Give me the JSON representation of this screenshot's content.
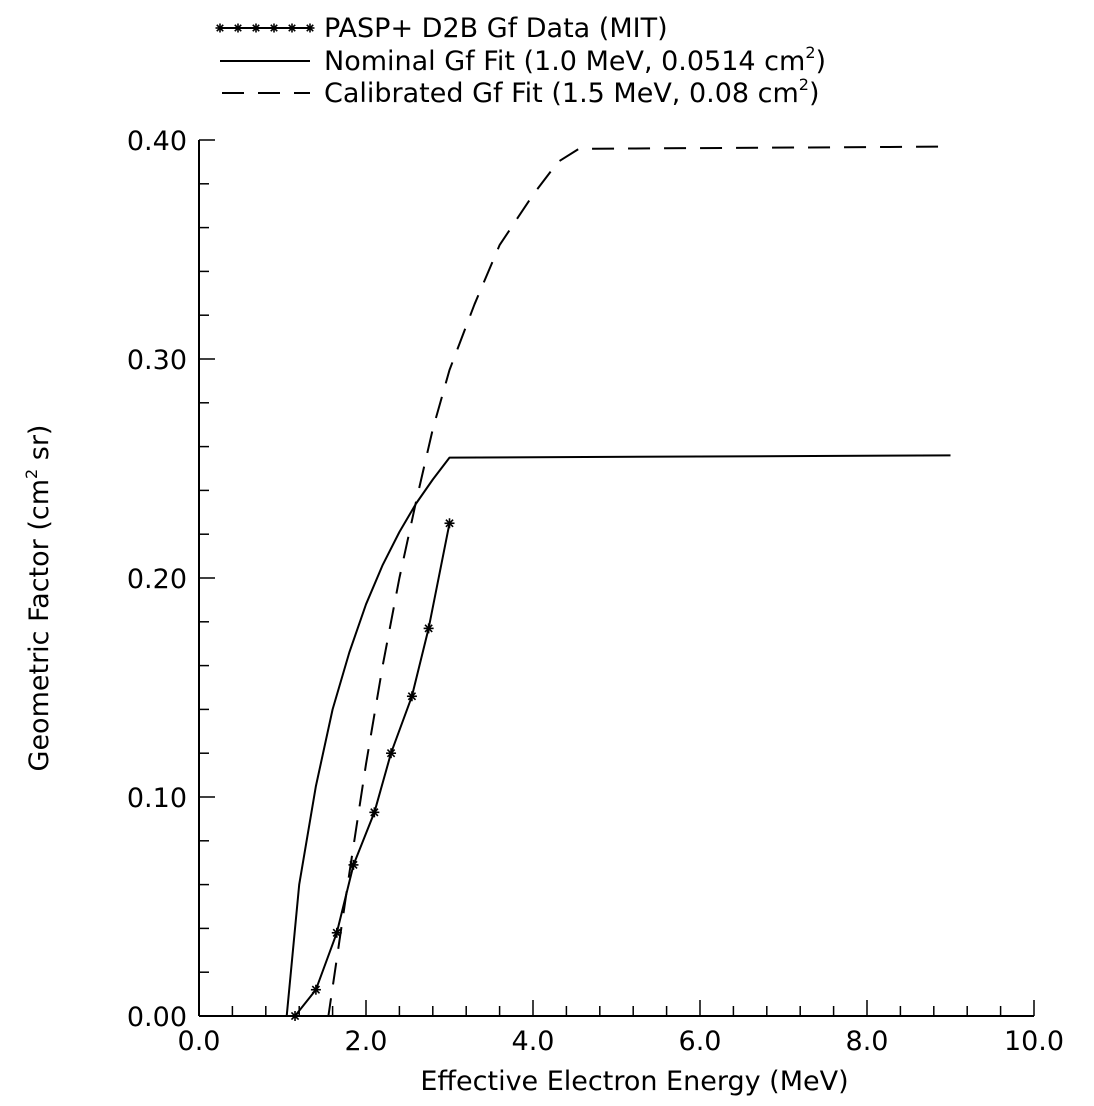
{
  "chart_data": {
    "type": "line",
    "xlabel": "Effective Electron Energy (MeV)",
    "ylabel_parts": [
      "Geometric Factor (cm",
      "2",
      " sr)"
    ],
    "xlim": [
      0,
      10
    ],
    "ylim": [
      0,
      0.4
    ],
    "x_ticks": [
      "0.0",
      "2.0",
      "4.0",
      "6.0",
      "8.0",
      "10.0"
    ],
    "x_tick_values": [
      0,
      2,
      4,
      6,
      8,
      10
    ],
    "y_ticks": [
      "0.00",
      "0.10",
      "0.20",
      "0.30",
      "0.40"
    ],
    "y_tick_values": [
      0,
      0.1,
      0.2,
      0.3,
      0.4
    ],
    "grid": false,
    "legend_position": "top",
    "series": [
      {
        "name": "PASP+ D2B Gf Data (MIT)",
        "legend_parts": [
          "PASP+ D2B Gf Data (MIT)"
        ],
        "style": "line-with-star-markers",
        "x": [
          1.15,
          1.4,
          1.65,
          1.85,
          2.1,
          2.3,
          2.55,
          2.75,
          3.0
        ],
        "y": [
          0.0,
          0.012,
          0.038,
          0.069,
          0.093,
          0.12,
          0.146,
          0.177,
          0.225
        ]
      },
      {
        "name": "Nominal Gf Fit (1.0 MeV, 0.0514 cm2)",
        "legend_parts": [
          "Nominal Gf Fit (1.0 MeV, 0.0514 cm",
          "2",
          ")"
        ],
        "style": "solid",
        "x": [
          1.0,
          1.05,
          1.2,
          1.4,
          1.6,
          1.8,
          2.0,
          2.2,
          2.4,
          2.6,
          2.8,
          3.0,
          9.0
        ],
        "y": [
          0.0,
          0.0,
          0.06,
          0.105,
          0.14,
          0.166,
          0.188,
          0.206,
          0.221,
          0.234,
          0.245,
          0.255,
          0.256
        ]
      },
      {
        "name": "Calibrated Gf Fit (1.5 MeV, 0.08 cm2)",
        "legend_parts": [
          "Calibrated Gf Fit (1.5 MeV, 0.08 cm",
          "2",
          ")"
        ],
        "style": "dashed",
        "x": [
          1.5,
          1.55,
          1.8,
          2.0,
          2.2,
          2.4,
          2.6,
          2.8,
          3.0,
          3.3,
          3.6,
          4.0,
          4.3,
          4.55,
          9.0
        ],
        "y": [
          0.0,
          0.0,
          0.065,
          0.115,
          0.16,
          0.2,
          0.235,
          0.268,
          0.295,
          0.325,
          0.352,
          0.375,
          0.39,
          0.396,
          0.397
        ]
      }
    ]
  }
}
